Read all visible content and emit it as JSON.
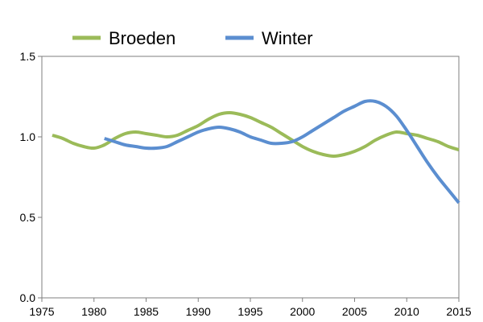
{
  "chart_data": {
    "type": "line",
    "xlim": [
      1975,
      2015
    ],
    "ylim": [
      0.0,
      1.5
    ],
    "x_ticks": [
      1975,
      1980,
      1985,
      1990,
      1995,
      2000,
      2005,
      2010,
      2015
    ],
    "y_ticks": [
      0.0,
      0.5,
      1.0,
      1.5
    ],
    "x_tick_labels": [
      "1975",
      "1980",
      "1985",
      "1990",
      "1995",
      "2000",
      "2005",
      "2010",
      "2015"
    ],
    "y_tick_labels": [
      "0.0",
      "0.5",
      "1.0",
      "1.5"
    ],
    "grid": false,
    "legend_position": "top-left",
    "series": [
      {
        "name": "Broeden",
        "color": "#9BBB59",
        "x": [
          1976,
          1977,
          1978,
          1979,
          1980,
          1981,
          1982,
          1983,
          1984,
          1985,
          1986,
          1987,
          1988,
          1989,
          1990,
          1991,
          1992,
          1993,
          1994,
          1995,
          1996,
          1997,
          1998,
          1999,
          2000,
          2001,
          2002,
          2003,
          2004,
          2005,
          2006,
          2007,
          2008,
          2009,
          2010,
          2011,
          2012,
          2013,
          2014,
          2015
        ],
        "values": [
          1.01,
          0.99,
          0.96,
          0.94,
          0.93,
          0.95,
          0.99,
          1.02,
          1.03,
          1.02,
          1.01,
          1.0,
          1.01,
          1.04,
          1.07,
          1.11,
          1.14,
          1.15,
          1.14,
          1.12,
          1.09,
          1.06,
          1.02,
          0.98,
          0.94,
          0.91,
          0.89,
          0.88,
          0.89,
          0.91,
          0.94,
          0.98,
          1.01,
          1.03,
          1.02,
          1.01,
          0.99,
          0.97,
          0.94,
          0.92
        ]
      },
      {
        "name": "Winter",
        "color": "#5B8ED0",
        "x": [
          1981,
          1982,
          1983,
          1984,
          1985,
          1986,
          1987,
          1988,
          1989,
          1990,
          1991,
          1992,
          1993,
          1994,
          1995,
          1996,
          1997,
          1998,
          1999,
          2000,
          2001,
          2002,
          2003,
          2004,
          2005,
          2006,
          2007,
          2008,
          2009,
          2010,
          2011,
          2012,
          2013,
          2014,
          2015
        ],
        "values": [
          0.99,
          0.97,
          0.95,
          0.94,
          0.93,
          0.93,
          0.94,
          0.97,
          1.0,
          1.03,
          1.05,
          1.06,
          1.05,
          1.03,
          1.0,
          0.98,
          0.96,
          0.96,
          0.97,
          1.0,
          1.04,
          1.08,
          1.12,
          1.16,
          1.19,
          1.22,
          1.22,
          1.19,
          1.13,
          1.04,
          0.94,
          0.84,
          0.75,
          0.67,
          0.59
        ]
      }
    ]
  }
}
